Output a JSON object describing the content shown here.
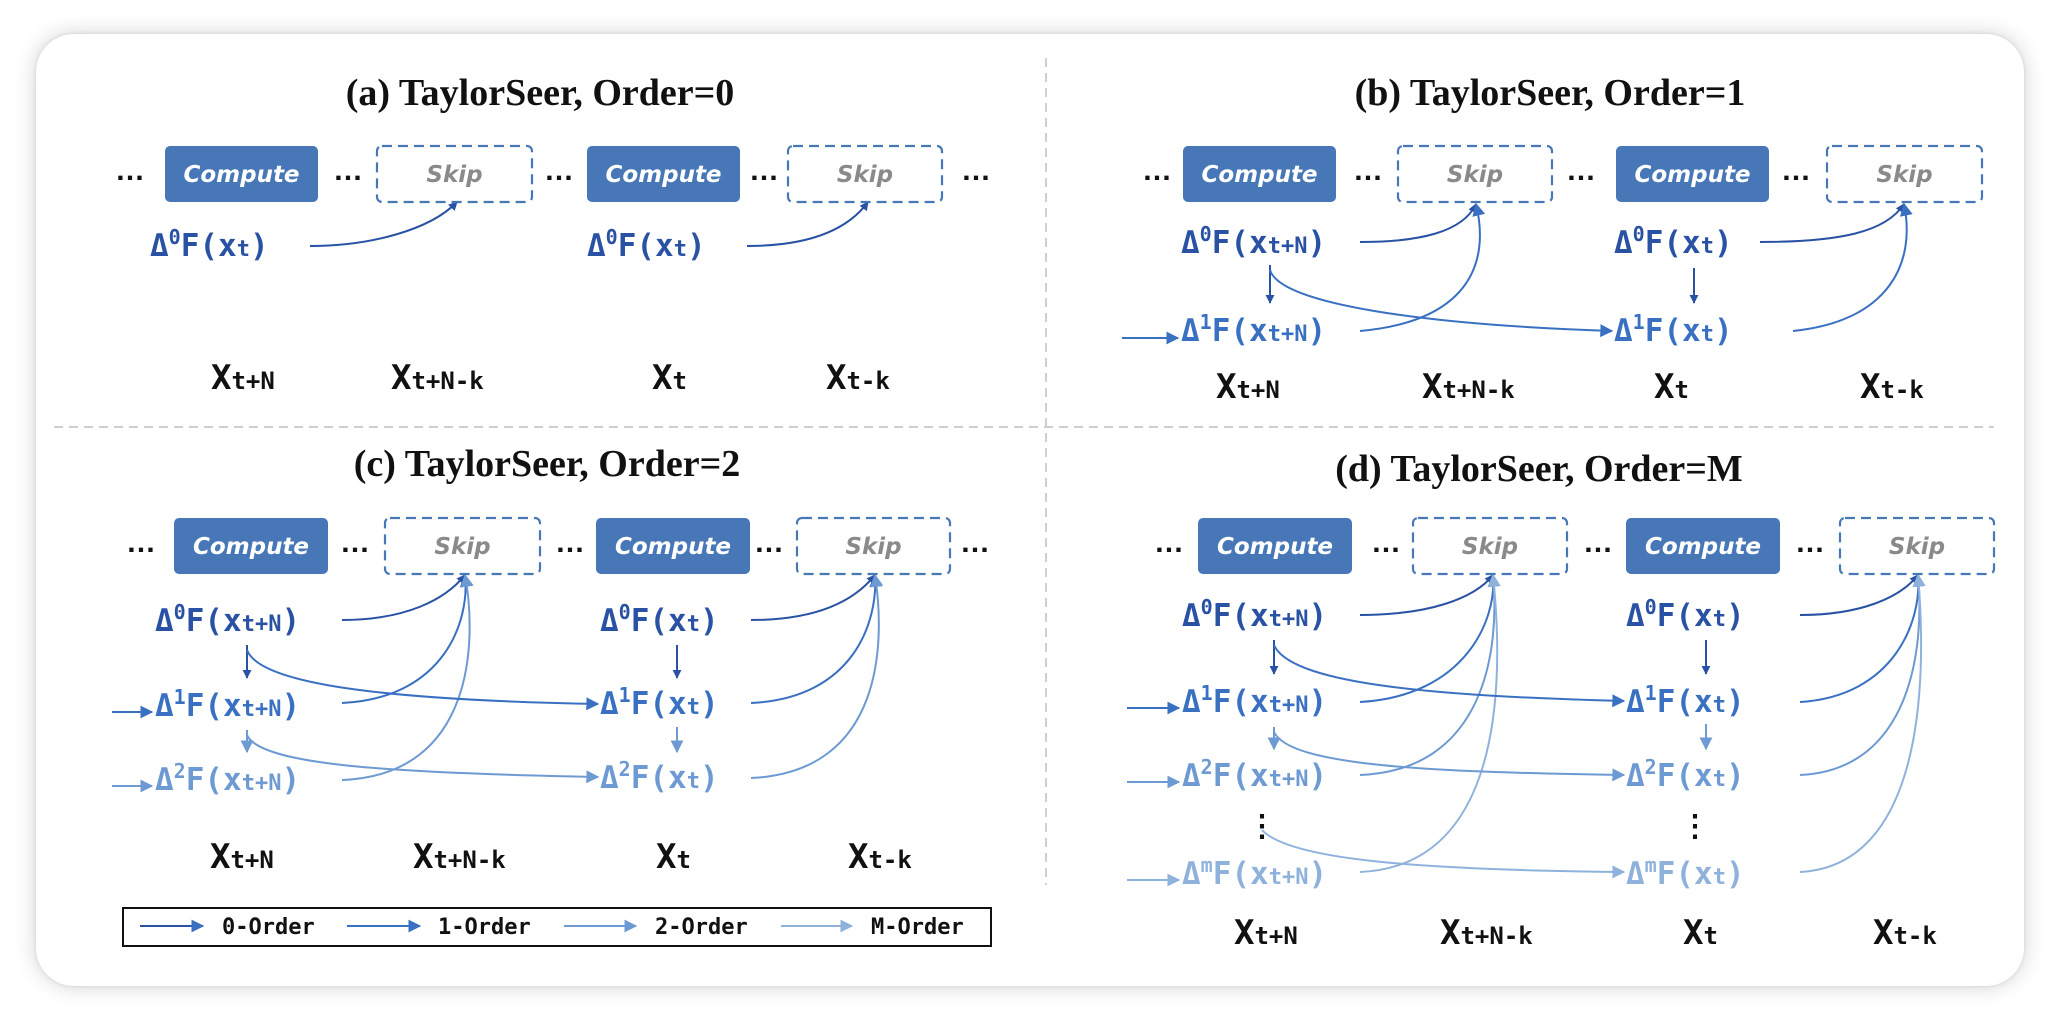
{
  "colors": {
    "order0": "#2a52a4",
    "order1": "#3a70c2",
    "order2": "#6d9ad2",
    "orderM": "#8fb2dc",
    "compute_fill": "#4777b7",
    "skip_stroke": "#4777b7",
    "skip_text": "#8a8a8a"
  },
  "common": {
    "dots": "…",
    "compute_label": "Compute",
    "skip_label": "Skip",
    "vdots": "⋮"
  },
  "panels": {
    "a": {
      "title": "(a) TaylorSeer, Order=0",
      "terms": [
        {
          "op": "Δ",
          "order": "0",
          "fn": "F",
          "var": "x",
          "sub": "t"
        },
        {
          "op": "Δ",
          "order": "0",
          "fn": "F",
          "var": "x",
          "sub": "t"
        }
      ],
      "xlabels": [
        {
          "main": "X",
          "sub": "t+N"
        },
        {
          "main": "X",
          "sub": "t+N-k"
        },
        {
          "main": "X",
          "sub": "t"
        },
        {
          "main": "X",
          "sub": "t-k"
        }
      ]
    },
    "b": {
      "title": "(b) TaylorSeer, Order=1",
      "terms": [
        {
          "op": "Δ",
          "order": "0",
          "fn": "F",
          "var": "x",
          "sub": "t+N"
        },
        {
          "op": "Δ",
          "order": "1",
          "fn": "F",
          "var": "x",
          "sub": "t+N"
        },
        {
          "op": "Δ",
          "order": "0",
          "fn": "F",
          "var": "x",
          "sub": "t"
        },
        {
          "op": "Δ",
          "order": "1",
          "fn": "F",
          "var": "x",
          "sub": "t"
        }
      ],
      "xlabels": [
        {
          "main": "X",
          "sub": "t+N"
        },
        {
          "main": "X",
          "sub": "t+N-k"
        },
        {
          "main": "X",
          "sub": "t"
        },
        {
          "main": "X",
          "sub": "t-k"
        }
      ]
    },
    "c": {
      "title": "(c) TaylorSeer, Order=2",
      "terms": [
        {
          "op": "Δ",
          "order": "0",
          "fn": "F",
          "var": "x",
          "sub": "t+N"
        },
        {
          "op": "Δ",
          "order": "1",
          "fn": "F",
          "var": "x",
          "sub": "t+N"
        },
        {
          "op": "Δ",
          "order": "2",
          "fn": "F",
          "var": "x",
          "sub": "t+N"
        },
        {
          "op": "Δ",
          "order": "0",
          "fn": "F",
          "var": "x",
          "sub": "t"
        },
        {
          "op": "Δ",
          "order": "1",
          "fn": "F",
          "var": "x",
          "sub": "t"
        },
        {
          "op": "Δ",
          "order": "2",
          "fn": "F",
          "var": "x",
          "sub": "t"
        }
      ],
      "xlabels": [
        {
          "main": "X",
          "sub": "t+N"
        },
        {
          "main": "X",
          "sub": "t+N-k"
        },
        {
          "main": "X",
          "sub": "t"
        },
        {
          "main": "X",
          "sub": "t-k"
        }
      ]
    },
    "d": {
      "title": "(d) TaylorSeer, Order=M",
      "terms": [
        {
          "op": "Δ",
          "order": "0",
          "fn": "F",
          "var": "x",
          "sub": "t+N"
        },
        {
          "op": "Δ",
          "order": "1",
          "fn": "F",
          "var": "x",
          "sub": "t+N"
        },
        {
          "op": "Δ",
          "order": "2",
          "fn": "F",
          "var": "x",
          "sub": "t+N"
        },
        {
          "op": "Δ",
          "order": "m",
          "fn": "F",
          "var": "x",
          "sub": "t+N"
        },
        {
          "op": "Δ",
          "order": "0",
          "fn": "F",
          "var": "x",
          "sub": "t"
        },
        {
          "op": "Δ",
          "order": "1",
          "fn": "F",
          "var": "x",
          "sub": "t"
        },
        {
          "op": "Δ",
          "order": "2",
          "fn": "F",
          "var": "x",
          "sub": "t"
        },
        {
          "op": "Δ",
          "order": "m",
          "fn": "F",
          "var": "x",
          "sub": "t"
        }
      ],
      "xlabels": [
        {
          "main": "X",
          "sub": "t+N"
        },
        {
          "main": "X",
          "sub": "t+N-k"
        },
        {
          "main": "X",
          "sub": "t"
        },
        {
          "main": "X",
          "sub": "t-k"
        }
      ]
    }
  },
  "legend": {
    "items": [
      {
        "label": "0-Order",
        "color": "#2a52a4"
      },
      {
        "label": "1-Order",
        "color": "#3a70c2"
      },
      {
        "label": "2-Order",
        "color": "#6d9ad2"
      },
      {
        "label": "M-Order",
        "color": "#8fb2dc"
      }
    ]
  }
}
